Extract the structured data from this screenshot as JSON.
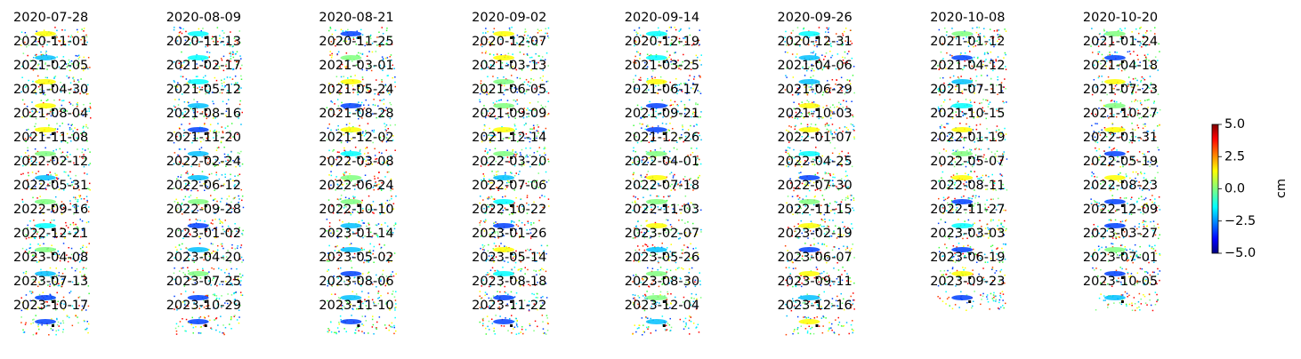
{
  "panels": [
    "2020-07-28",
    "2020-08-09",
    "2020-08-21",
    "2020-09-02",
    "2020-09-14",
    "2020-09-26",
    "2020-10-08",
    "2020-10-20",
    "2020-11-01",
    "2020-11-13",
    "2020-11-25",
    "2020-12-07",
    "2020-12-19",
    "2020-12-31",
    "2021-01-12",
    "2021-01-24",
    "2021-02-05",
    "2021-02-17",
    "2021-03-01",
    "2021-03-13",
    "2021-03-25",
    "2021-04-06",
    "2021-04-12",
    "2021-04-18",
    "2021-04-30",
    "2021-05-12",
    "2021-05-24",
    "2021-06-05",
    "2021-06-17",
    "2021-06-29",
    "2021-07-11",
    "2021-07-23",
    "2021-08-04",
    "2021-08-16",
    "2021-08-28",
    "2021-09-09",
    "2021-09-21",
    "2021-10-03",
    "2021-10-15",
    "2021-10-27",
    "2021-11-08",
    "2021-11-20",
    "2021-12-02",
    "2021-12-14",
    "2021-12-26",
    "2022-01-07",
    "2022-01-19",
    "2022-01-31",
    "2022-02-12",
    "2022-02-24",
    "2022-03-08",
    "2022-03-20",
    "2022-04-01",
    "2022-04-25",
    "2022-05-07",
    "2022-05-19",
    "2022-05-31",
    "2022-06-12",
    "2022-06-24",
    "2022-07-06",
    "2022-07-18",
    "2022-07-30",
    "2022-08-11",
    "2022-08-23",
    "2022-09-16",
    "2022-09-28",
    "2022-10-10",
    "2022-10-22",
    "2022-11-03",
    "2022-11-15",
    "2022-11-27",
    "2022-12-09",
    "2022-12-21",
    "2023-01-02",
    "2023-01-14",
    "2023-01-26",
    "2023-02-07",
    "2023-02-19",
    "2023-03-03",
    "2023-03-27",
    "2023-04-08",
    "2023-04-20",
    "2023-05-02",
    "2023-05-14",
    "2023-05-26",
    "2023-06-07",
    "2023-06-19",
    "2023-07-01",
    "2023-07-13",
    "2023-07-25",
    "2023-08-06",
    "2023-08-18",
    "2023-08-30",
    "2023-09-11",
    "2023-09-23",
    "2023-10-05",
    "2023-10-17",
    "2023-10-29",
    "2023-11-10",
    "2023-11-22",
    "2023-12-04",
    "2023-12-16"
  ],
  "colorbar": {
    "label": "cm",
    "lim": [
      -5,
      5
    ],
    "ticks": [
      {
        "value": 5,
        "label": "5.0"
      },
      {
        "value": 2.5,
        "label": "2.5"
      },
      {
        "value": 0,
        "label": "0.0"
      },
      {
        "value": -2.5,
        "label": "−2.5"
      },
      {
        "value": -5,
        "label": "−5.0"
      }
    ]
  }
}
